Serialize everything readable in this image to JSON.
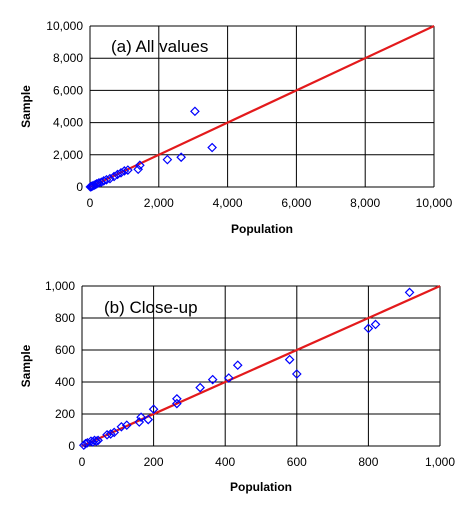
{
  "chart_data": [
    {
      "type": "scatter",
      "title": "(a) All values",
      "xlabel": "Population",
      "ylabel": "Sample",
      "xlim": [
        0,
        10000
      ],
      "ylim": [
        0,
        10000
      ],
      "xticks": [
        "0",
        "2,000",
        "4,000",
        "6,000",
        "8,000",
        "10,000"
      ],
      "yticks": [
        "0",
        "2,000",
        "4,000",
        "6,000",
        "8,000",
        "10,000"
      ],
      "grid": true,
      "series": [
        {
          "type": "scatter",
          "marker": "diamond",
          "color": "#0000ff",
          "points": [
            [
              10,
              10
            ],
            [
              30,
              25
            ],
            [
              50,
              40
            ],
            [
              80,
              70
            ],
            [
              120,
              110
            ],
            [
              160,
              150
            ],
            [
              200,
              200
            ],
            [
              260,
              260
            ],
            [
              330,
              300
            ],
            [
              400,
              380
            ],
            [
              480,
              450
            ],
            [
              580,
              520
            ],
            [
              700,
              650
            ],
            [
              800,
              780
            ],
            [
              900,
              880
            ],
            [
              1000,
              1000
            ],
            [
              1100,
              1050
            ],
            [
              1400,
              1100
            ],
            [
              1450,
              1350
            ],
            [
              2250,
              1700
            ],
            [
              2650,
              1850
            ],
            [
              3050,
              4700
            ],
            [
              3550,
              2450
            ]
          ]
        },
        {
          "type": "line",
          "color": "#e31a1c",
          "points": [
            [
              0,
              0
            ],
            [
              10000,
              10000
            ]
          ]
        }
      ]
    },
    {
      "type": "scatter",
      "title": "(b) Close-up",
      "xlabel": "Population",
      "ylabel": "Sample",
      "xlim": [
        0,
        1000
      ],
      "ylim": [
        0,
        1000
      ],
      "xticks": [
        "0",
        "200",
        "400",
        "600",
        "800",
        "1,000"
      ],
      "yticks": [
        "0",
        "200",
        "400",
        "600",
        "800",
        "1,000"
      ],
      "grid": true,
      "series": [
        {
          "type": "scatter",
          "marker": "diamond",
          "color": "#0000ff",
          "points": [
            [
              5,
              5
            ],
            [
              10,
              15
            ],
            [
              15,
              20
            ],
            [
              25,
              30
            ],
            [
              30,
              25
            ],
            [
              35,
              35
            ],
            [
              40,
              30
            ],
            [
              45,
              35
            ],
            [
              70,
              70
            ],
            [
              80,
              75
            ],
            [
              90,
              85
            ],
            [
              110,
              120
            ],
            [
              125,
              130
            ],
            [
              160,
              150
            ],
            [
              165,
              180
            ],
            [
              185,
              165
            ],
            [
              200,
              230
            ],
            [
              265,
              265
            ],
            [
              265,
              295
            ],
            [
              330,
              365
            ],
            [
              365,
              415
            ],
            [
              410,
              425
            ],
            [
              435,
              505
            ],
            [
              580,
              540
            ],
            [
              600,
              450
            ],
            [
              800,
              735
            ],
            [
              820,
              760
            ],
            [
              915,
              960
            ]
          ]
        },
        {
          "type": "line",
          "color": "#e31a1c",
          "points": [
            [
              0,
              0
            ],
            [
              1000,
              1000
            ]
          ]
        }
      ]
    }
  ]
}
